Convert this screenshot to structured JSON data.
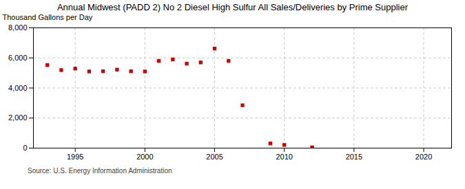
{
  "chart_data": {
    "type": "scatter",
    "title": "Annual Midwest (PADD 2) No 2 Diesel High Sulfur All Sales/Deliveries by Prime Supplier",
    "ylabel": "Thousand Gallons per Day",
    "source": "Source: U.S. Energy Information Administration",
    "x": [
      1993,
      1994,
      1995,
      1996,
      1997,
      1998,
      1999,
      2000,
      2001,
      2002,
      2003,
      2004,
      2005,
      2006,
      2007,
      2009,
      2010,
      2012
    ],
    "values": [
      5520,
      5190,
      5290,
      5100,
      5110,
      5220,
      5110,
      5100,
      5800,
      5900,
      5620,
      5700,
      6620,
      5800,
      2850,
      310,
      210,
      55
    ],
    "color": "#cc0000",
    "marker": "square",
    "xlim": [
      1992,
      2022
    ],
    "xticks": [
      1995,
      2000,
      2005,
      2010,
      2015,
      2020
    ],
    "ylim": [
      0,
      8000
    ],
    "yticks": [
      0,
      {
        "value": 2000,
        "label": "2,000"
      },
      {
        "value": 4000,
        "label": "4,000"
      },
      {
        "value": 6000,
        "label": "6,000"
      },
      {
        "value": 8000,
        "label": "8,000"
      }
    ],
    "grid": true
  }
}
